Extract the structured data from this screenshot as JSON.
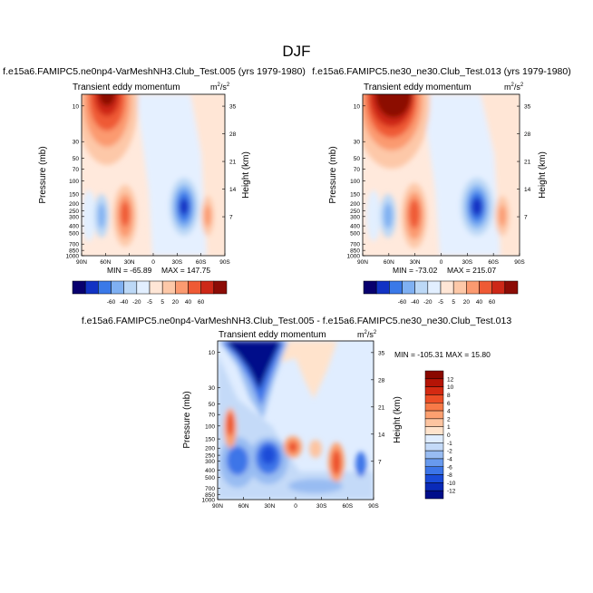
{
  "figure": {
    "title": "DJF"
  },
  "chart_data": [
    {
      "type": "heatmap",
      "panel": "left",
      "title": "f.e15a6.FAMIPC5.ne0np4-VarMeshNH3.Club_Test.005 (yrs 1979-1980)",
      "subtitle_left": "Transient eddy momentum",
      "units_base": "m",
      "units_sup1": "2",
      "units_mid": "/s",
      "units_sup2": "2",
      "xlabel": "",
      "ylabel": "Pressure (mb)",
      "ylabel_right": "Height (km)",
      "x_ticks": [
        "90N",
        "60N",
        "30N",
        "0",
        "30S",
        "60S",
        "90S"
      ],
      "y_ticks": [
        "10",
        "30",
        "50",
        "70",
        "100",
        "150",
        "200",
        "250",
        "300",
        "400",
        "500",
        "700",
        "850",
        "1000"
      ],
      "y_ticks_right": [
        "35",
        "28",
        "21",
        "14",
        "7"
      ],
      "min_label": "MIN = -65.89",
      "max_label": "MAX = 147.75",
      "min": -65.89,
      "max": 147.75,
      "levels": [
        "-60",
        "-40",
        "-20",
        "-5",
        "5",
        "20",
        "40",
        "60"
      ]
    },
    {
      "type": "heatmap",
      "panel": "right",
      "title": "f.e15a6.FAMIPC5.ne30_ne30.Club_Test.013 (yrs 1979-1980)",
      "subtitle_left": "Transient eddy momentum",
      "units_base": "m",
      "units_sup1": "2",
      "units_mid": "/s",
      "units_sup2": "2",
      "xlabel": "",
      "ylabel": "Pressure (mb)",
      "ylabel_right": "Height (km)",
      "x_ticks": [
        "90N",
        "60N",
        "30N",
        "0",
        "30S",
        "60S",
        "90S"
      ],
      "y_ticks": [
        "10",
        "30",
        "50",
        "70",
        "100",
        "150",
        "200",
        "250",
        "300",
        "400",
        "500",
        "700",
        "850",
        "1000"
      ],
      "y_ticks_right": [
        "35",
        "28",
        "21",
        "14",
        "7"
      ],
      "min_label": "MIN = -73.02",
      "max_label": "MAX = 215.07",
      "min": -73.02,
      "max": 215.07,
      "levels": [
        "-60",
        "-40",
        "-20",
        "-5",
        "5",
        "20",
        "40",
        "60"
      ]
    },
    {
      "type": "heatmap",
      "panel": "difference",
      "title": "f.e15a6.FAMIPC5.ne0np4-VarMeshNH3.Club_Test.005 - f.e15a6.FAMIPC5.ne30_ne30.Club_Test.013",
      "subtitle_left": "Transient eddy momentum",
      "units_base": "m",
      "units_sup1": "2",
      "units_mid": "/s",
      "units_sup2": "2",
      "xlabel": "",
      "ylabel": "Pressure (mb)",
      "ylabel_right": "Height (km)",
      "x_ticks": [
        "90N",
        "60N",
        "30N",
        "0",
        "30S",
        "60S",
        "90S"
      ],
      "y_ticks": [
        "10",
        "30",
        "50",
        "70",
        "100",
        "150",
        "200",
        "250",
        "300",
        "400",
        "500",
        "700",
        "850",
        "1000"
      ],
      "y_ticks_right": [
        "35",
        "28",
        "21",
        "14",
        "7"
      ],
      "minmax_label": "MIN = -105.31   MAX =  15.80",
      "min": -105.31,
      "max": 15.8,
      "levels": [
        "12",
        "10",
        "8",
        "6",
        "4",
        "2",
        "1",
        "0",
        "-1",
        "-2",
        "-4",
        "-6",
        "-8",
        "-10",
        "-12"
      ]
    }
  ],
  "colors": {
    "top_scale": [
      "#08006e",
      "#1233c4",
      "#3a79e8",
      "#7fb0f2",
      "#bcd8f6",
      "#e2efff",
      "#ffe6d6",
      "#fdc8a8",
      "#fb9a70",
      "#ef5a35",
      "#cd2818",
      "#8c0c06"
    ],
    "diff_scale": [
      "#000e8a",
      "#0a2ab8",
      "#1a4bd8",
      "#3c75e8",
      "#689aee",
      "#98bcf2",
      "#c4daf8",
      "#e0edff",
      "#ffe3cc",
      "#fdc4a0",
      "#fca070",
      "#f77a48",
      "#ec4e26",
      "#d42a12",
      "#b51406",
      "#8a0800"
    ]
  }
}
